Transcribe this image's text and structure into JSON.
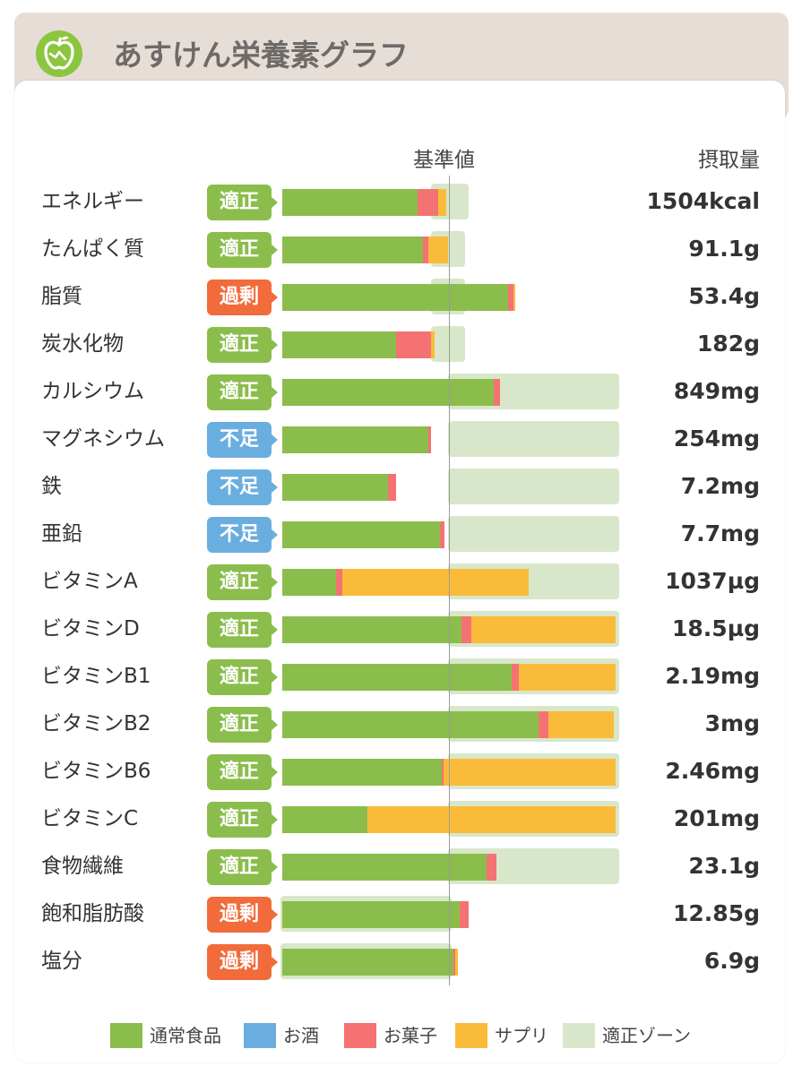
{
  "app": {
    "title": "あすけん栄養素グラフ"
  },
  "header": {
    "reference": "基準値",
    "intake": "摂取量"
  },
  "colors": {
    "normal": "#8bbd4c",
    "alcohol": "#6aaee0",
    "snack": "#f57272",
    "supplement": "#fbbb3a",
    "zone": "#d8e7c9",
    "status_ok": "#8bbd4c",
    "status_over": "#f26b3a",
    "status_under": "#6aaee0"
  },
  "legend": [
    {
      "key": "normal",
      "label": "通常食品"
    },
    {
      "key": "alcohol",
      "label": "お酒"
    },
    {
      "key": "snack",
      "label": "お菓子"
    },
    {
      "key": "supplement",
      "label": "サプリ"
    },
    {
      "key": "zone",
      "label": "適正ゾーン"
    }
  ],
  "chart_data": {
    "type": "bar",
    "stacked": true,
    "orientation": "horizontal",
    "unit": "percent of reference value (基準値 = 100)",
    "series_keys": [
      "normal",
      "snack",
      "supplement"
    ],
    "rows": [
      {
        "name": "エネルギー",
        "status": "適正",
        "status_key": "ok",
        "intake": "1504kcal",
        "normal": 81,
        "snack": 12,
        "supplement": 5,
        "zone": [
          90,
          110
        ]
      },
      {
        "name": "たんぱく質",
        "status": "適正",
        "status_key": "ok",
        "intake": "91.1g",
        "normal": 84,
        "snack": 3,
        "supplement": 12,
        "zone": [
          90,
          108
        ]
      },
      {
        "name": "脂質",
        "status": "過剰",
        "status_key": "over",
        "intake": "53.4g",
        "normal": 135,
        "snack": 3,
        "supplement": 1,
        "zone": [
          90,
          108
        ]
      },
      {
        "name": "炭水化物",
        "status": "適正",
        "status_key": "ok",
        "intake": "182g",
        "normal": 68,
        "snack": 21,
        "supplement": 2,
        "zone": [
          90,
          108
        ]
      },
      {
        "name": "カルシウム",
        "status": "適正",
        "status_key": "ok",
        "intake": "849mg",
        "normal": 126,
        "snack": 4,
        "supplement": 0,
        "zone": [
          100,
          200
        ]
      },
      {
        "name": "マグネシウム",
        "status": "不足",
        "status_key": "under",
        "intake": "254mg",
        "normal": 87,
        "snack": 2,
        "supplement": 0,
        "zone": [
          100,
          200
        ]
      },
      {
        "name": "鉄",
        "status": "不足",
        "status_key": "under",
        "intake": "7.2mg",
        "normal": 63,
        "snack": 5,
        "supplement": 0,
        "zone": [
          100,
          200
        ]
      },
      {
        "name": "亜鉛",
        "status": "不足",
        "status_key": "under",
        "intake": "7.7mg",
        "normal": 94,
        "snack": 3,
        "supplement": 0,
        "zone": [
          100,
          200
        ]
      },
      {
        "name": "ビタミンA",
        "status": "適正",
        "status_key": "ok",
        "intake": "1037µg",
        "normal": 32,
        "snack": 4,
        "supplement": 111,
        "zone": [
          100,
          200
        ]
      },
      {
        "name": "ビタミンD",
        "status": "適正",
        "status_key": "ok",
        "intake": "18.5µg",
        "normal": 107,
        "snack": 6,
        "supplement": 86,
        "zone": [
          100,
          200
        ]
      },
      {
        "name": "ビタミンB1",
        "status": "適正",
        "status_key": "ok",
        "intake": "2.19mg",
        "normal": 137,
        "snack": 4,
        "supplement": 58,
        "zone": [
          100,
          200
        ]
      },
      {
        "name": "ビタミンB2",
        "status": "適正",
        "status_key": "ok",
        "intake": "3mg",
        "normal": 153,
        "snack": 6,
        "supplement": 39,
        "zone": [
          100,
          200
        ]
      },
      {
        "name": "ビタミンB6",
        "status": "適正",
        "status_key": "ok",
        "intake": "2.46mg",
        "normal": 95,
        "snack": 1,
        "supplement": 103,
        "zone": [
          100,
          200
        ]
      },
      {
        "name": "ビタミンC",
        "status": "適正",
        "status_key": "ok",
        "intake": "201mg",
        "normal": 51,
        "snack": 0,
        "supplement": 148,
        "zone": [
          100,
          200
        ]
      },
      {
        "name": "食物繊維",
        "status": "適正",
        "status_key": "ok",
        "intake": "23.1g",
        "normal": 122,
        "snack": 6,
        "supplement": 0,
        "zone": [
          100,
          200
        ]
      },
      {
        "name": "飽和脂肪酸",
        "status": "過剰",
        "status_key": "over",
        "intake": "12.85g",
        "normal": 106,
        "snack": 5,
        "supplement": 0,
        "zone": [
          0,
          100
        ]
      },
      {
        "name": "塩分",
        "status": "過剰",
        "status_key": "over",
        "intake": "6.9g",
        "normal": 102,
        "snack": 1,
        "supplement": 2,
        "zone": [
          0,
          100
        ]
      }
    ]
  }
}
